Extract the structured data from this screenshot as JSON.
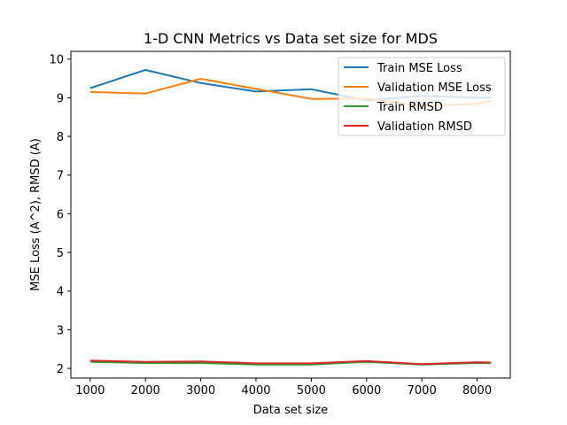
{
  "chart_data": {
    "type": "line",
    "title": "1-D CNN Metrics vs Data set size for MDS",
    "xlabel": "Data set size",
    "ylabel": "MSE Loss (A^2), RMSD (A)",
    "xlim": [
      650,
      8600
    ],
    "ylim": [
      1.75,
      10.2
    ],
    "grid": false,
    "legend_position": "top-right",
    "x_ticks": [
      1000,
      2000,
      3000,
      4000,
      5000,
      6000,
      7000,
      8000
    ],
    "y_ticks": [
      2,
      3,
      4,
      5,
      6,
      7,
      8,
      9,
      10
    ],
    "x": [
      1000,
      2000,
      3000,
      4000,
      5000,
      6000,
      7000,
      8000,
      8250
    ],
    "series": [
      {
        "name": "Train MSE Loss",
        "color": "#1f77b4",
        "values": [
          9.25,
          9.72,
          9.38,
          9.16,
          9.22,
          8.93,
          9.05,
          9.0,
          9.0
        ]
      },
      {
        "name": "Validation MSE Loss",
        "color": "#ff7f0e",
        "values": [
          9.15,
          9.11,
          9.49,
          9.23,
          8.97,
          8.98,
          8.78,
          8.85,
          8.92
        ]
      },
      {
        "name": "Train RMSD",
        "color": "#2ca02c",
        "values": [
          2.17,
          2.14,
          2.14,
          2.1,
          2.1,
          2.17,
          2.1,
          2.14,
          2.14
        ]
      },
      {
        "name": "Validation RMSD",
        "color": "#d62728",
        "values": [
          2.2,
          2.17,
          2.18,
          2.13,
          2.13,
          2.19,
          2.11,
          2.16,
          2.15
        ]
      }
    ]
  }
}
